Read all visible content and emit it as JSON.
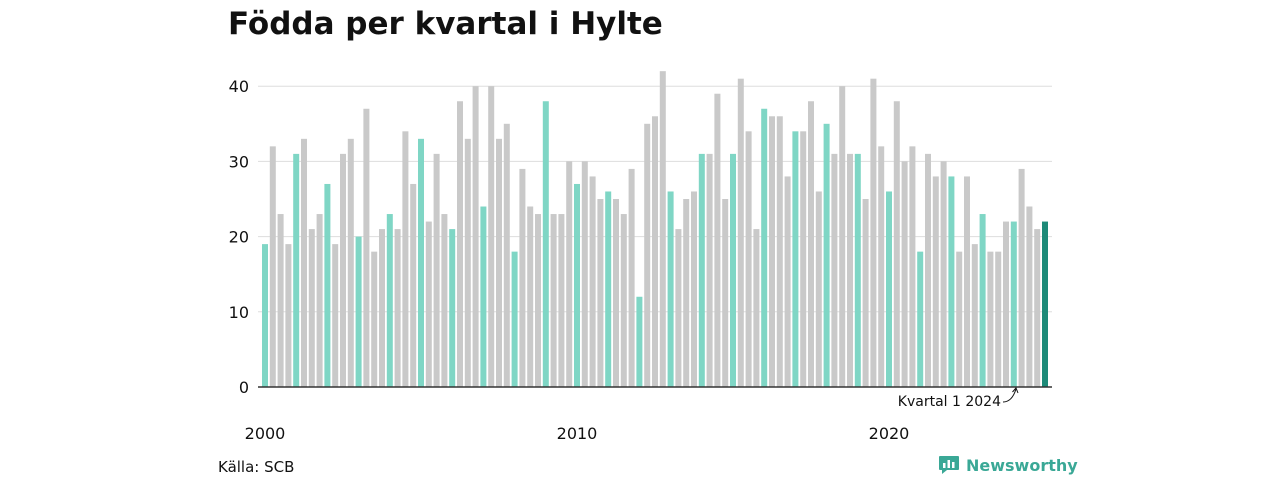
{
  "title": "Födda per kvartal i Hylte",
  "source": "Källa: SCB",
  "brand": "Newsworthy",
  "colors": {
    "q1": "#7fd6c5",
    "other": "#c9c9c9",
    "latest": "#1d8a78",
    "grid": "#dddddd",
    "axis": "#333333",
    "brand": "#3aa896"
  },
  "chart_data": {
    "type": "bar",
    "x_start": "2000 Q1",
    "ylim": [
      0,
      42
    ],
    "y_ticks": [
      0,
      10,
      20,
      30,
      40
    ],
    "x_ticks": [
      "2000",
      "2010",
      "2020"
    ],
    "highlight": "first quarter of each year",
    "annotation": "Kvartal 1 2024",
    "values": [
      19,
      32,
      23,
      19,
      31,
      33,
      21,
      23,
      27,
      19,
      31,
      33,
      20,
      37,
      18,
      21,
      23,
      21,
      34,
      27,
      33,
      22,
      31,
      23,
      21,
      38,
      33,
      40,
      24,
      40,
      33,
      35,
      18,
      29,
      24,
      23,
      38,
      23,
      23,
      30,
      27,
      30,
      28,
      25,
      26,
      25,
      23,
      29,
      12,
      35,
      36,
      42,
      26,
      21,
      25,
      26,
      31,
      31,
      39,
      25,
      31,
      41,
      34,
      21,
      37,
      36,
      36,
      28,
      34,
      34,
      38,
      26,
      35,
      31,
      40,
      31,
      31,
      25,
      41,
      32,
      26,
      38,
      30,
      32,
      18,
      31,
      28,
      30,
      28,
      18,
      28,
      19,
      23,
      18,
      18,
      22,
      22,
      29,
      24,
      21,
      22
    ]
  }
}
